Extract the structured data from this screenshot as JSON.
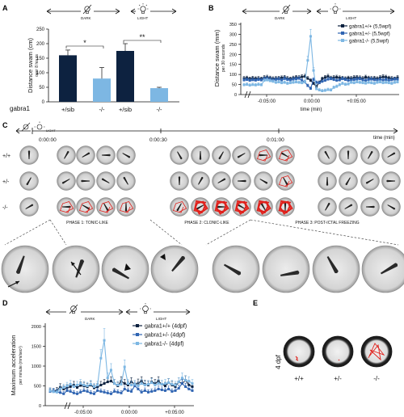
{
  "figure": {
    "panels": [
      "A",
      "B",
      "C",
      "D",
      "E"
    ],
    "dark_label": "DARK",
    "light_label": "LIGHT",
    "time_min_label": "time (min)"
  },
  "colors": {
    "wt_dark": "#0d2240",
    "het_blue": "#2f64b2",
    "mut_light": "#7db7e3",
    "red_trace": "#e0201b",
    "well_gray": "#bdbdbd"
  },
  "panelA": {
    "ylabel": "Distance swam (cm)",
    "ylabel_sub": "over 8 hours",
    "genotype_label": "gabra1",
    "yticks": [
      "0",
      "50",
      "100",
      "150",
      "200",
      "250"
    ],
    "xlabels": [
      "+/sib",
      "-/-",
      "+/sib",
      "-/-"
    ],
    "sig": [
      "*",
      "**"
    ]
  },
  "panelB": {
    "ylabel": "Distance swam (mm)",
    "ylabel_sub": "per 30 seconds",
    "yticks": [
      "0",
      "50",
      "100",
      "150",
      "200",
      "250",
      "300",
      "350"
    ],
    "xticks": [
      "-0:05:00",
      "0:00:00",
      "+0:05:00"
    ],
    "legend": [
      {
        "label": "gabra1+/+ (5,5wpf)",
        "color": "#0d2240"
      },
      {
        "label": "gabra1+/- (5,5wpf)",
        "color": "#2f64b2"
      },
      {
        "label": "gabra1-/- (5,5wpf)",
        "color": "#7db7e3"
      }
    ]
  },
  "panelC": {
    "times": [
      "0:00:00",
      "0:00:30",
      "0:01:00"
    ],
    "time_unit": "time (min)",
    "rows": [
      "+/+",
      "+/-",
      "-/-"
    ],
    "phases": [
      "PHASE 1: TONIC-LIKE",
      "PHASE 2: CLONIC-LIKE",
      "PHASE 3: POST-ICTAL FREEZING"
    ]
  },
  "panelD": {
    "ylabel": "Maximum acceleration",
    "ylabel_sub": "per minute (mm/sec²)",
    "yticks": [
      "0",
      "500",
      "1000",
      "1500",
      "2000"
    ],
    "xticks": [
      "-0:05:00",
      "0:00:00",
      "+0:05:00"
    ],
    "legend": [
      {
        "label": "gabra1+/+ (4dpf)",
        "color": "#0d2240"
      },
      {
        "label": "gabra1+/- (4dpf)",
        "color": "#2f64b2"
      },
      {
        "label": "gabra1-/- (4dpf)",
        "color": "#7db7e3"
      }
    ]
  },
  "panelE": {
    "age": "4 dpf",
    "genotypes": [
      "+/+",
      "+/-",
      "-/-"
    ]
  },
  "chart_data": [
    {
      "type": "bar",
      "panel": "A",
      "categories": [
        "+/sib",
        "-/-",
        "+/sib",
        "-/-"
      ],
      "groups": [
        "DARK",
        "LIGHT"
      ],
      "values": [
        160,
        80,
        175,
        47
      ],
      "errors": [
        18,
        38,
        25,
        3
      ],
      "ylabel": "Distance swam (cm)",
      "ylim": [
        0,
        250
      ]
    },
    {
      "type": "line",
      "panel": "B",
      "ylabel": "Distance swam (mm)",
      "xlabel": "time (min)",
      "ylim": [
        0,
        350
      ],
      "series": [
        {
          "name": "gabra1+/+ (5,5wpf)",
          "values": [
            80,
            82,
            78,
            81,
            79,
            80,
            78,
            84,
            86,
            82,
            79,
            80,
            81,
            83,
            85,
            80,
            78,
            82,
            85,
            84,
            88,
            90,
            80,
            70,
            55,
            40,
            60,
            78,
            85,
            90,
            82,
            84,
            86,
            83,
            81,
            79,
            82,
            80,
            84,
            85,
            83,
            80,
            86,
            82,
            80,
            81,
            79,
            84,
            88,
            86,
            82,
            80,
            78,
            84
          ]
        },
        {
          "name": "gabra1+/- (5,5wpf)",
          "values": [
            72,
            74,
            70,
            73,
            71,
            74,
            72,
            78,
            80,
            76,
            73,
            75,
            77,
            72,
            79,
            74,
            72,
            76,
            78,
            80,
            70,
            62,
            44,
            30,
            75,
            60,
            58,
            65,
            70,
            76,
            78,
            74,
            70,
            72,
            78,
            74,
            70,
            72,
            74,
            76,
            78,
            72,
            70,
            74,
            76,
            73,
            71,
            75,
            72,
            74,
            70,
            73,
            76,
            74
          ]
        },
        {
          "name": "gabra1-/- (5,5wpf)",
          "values": [
            48,
            50,
            46,
            49,
            47,
            50,
            48,
            70,
            72,
            68,
            65,
            60,
            62,
            58,
            60,
            55,
            58,
            60,
            62,
            60,
            58,
            62,
            170,
            290,
            120,
            28,
            22,
            18,
            20,
            24,
            22,
            35,
            40,
            48,
            55,
            50,
            52,
            60,
            58,
            62,
            60,
            58,
            56,
            60,
            58,
            55,
            60,
            62,
            58,
            60,
            58,
            55,
            60,
            62
          ]
        }
      ]
    },
    {
      "type": "line",
      "panel": "D",
      "ylabel": "Maximum acceleration",
      "xlabel": "",
      "ylim": [
        0,
        2000
      ],
      "series": [
        {
          "name": "gabra1+/+ (4dpf)",
          "values": [
            380,
            360,
            390,
            470,
            420,
            450,
            480,
            520,
            460,
            510,
            500,
            480,
            520,
            450,
            470,
            520,
            560,
            600,
            620,
            560,
            500,
            620,
            560,
            520,
            600,
            540,
            570,
            620,
            540,
            520,
            600,
            560,
            620,
            540,
            500,
            580,
            520,
            480,
            600,
            560,
            640,
            520,
            480
          ]
        },
        {
          "name": "gabra1+/- (4dpf)",
          "values": [
            360,
            370,
            350,
            330,
            300,
            380,
            360,
            320,
            300,
            340,
            380,
            360,
            320,
            300,
            380,
            360,
            340,
            320,
            300,
            360,
            340,
            320,
            420,
            380,
            360,
            500,
            420,
            340,
            380,
            340,
            360,
            380,
            420,
            400,
            380,
            420,
            360,
            380,
            440,
            560,
            480,
            420,
            380
          ]
        },
        {
          "name": "gabra1-/- (4dpf)",
          "values": [
            380,
            350,
            340,
            420,
            460,
            500,
            540,
            480,
            520,
            560,
            520,
            500,
            540,
            480,
            520,
            1200,
            1650,
            700,
            900,
            560,
            520,
            540,
            980,
            560,
            520,
            540,
            500,
            560,
            520,
            540,
            580,
            520,
            560,
            540,
            560,
            580,
            540,
            520,
            600,
            700,
            640,
            620,
            560
          ]
        }
      ]
    }
  ]
}
